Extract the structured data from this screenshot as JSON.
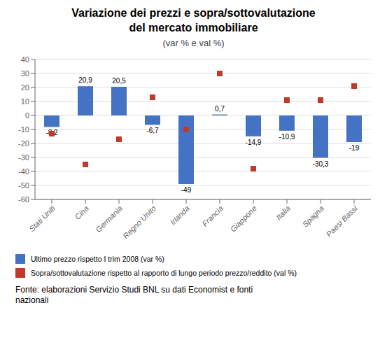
{
  "chart_data": {
    "type": "bar",
    "title": "Variazione dei prezzi e sopra/sottovalutazione\ndel mercato immobiliare",
    "subtitle": "(var % e val %)",
    "categories": [
      "Stati Uniti",
      "Cina",
      "Germania",
      "Regno Unito",
      "Irlanda",
      "Francia",
      "Giappone",
      "Italia",
      "Spagna",
      "Paesi Bassi"
    ],
    "series": [
      {
        "name": "Ultimo prezzo rispetto I trim 2008 (var %)",
        "type": "bar",
        "color": "#4472C4",
        "values": [
          -8.2,
          20.9,
          20.5,
          -6.7,
          -49,
          0.7,
          -14.9,
          -10.9,
          -30.3,
          -19
        ],
        "value_labels": [
          "-8,2",
          "20,9",
          "20,5",
          "-6,7",
          "-49",
          "0,7",
          "-14,9",
          "-10,9",
          "-30,3",
          "-19"
        ]
      },
      {
        "name": "Sopra/sottovalutazione rispetto al rapporto di lungo periodo prezzo/reddito (val %)",
        "type": "scatter",
        "marker": "square",
        "color": "#C0392B",
        "values": [
          -13,
          -35,
          -17,
          13,
          -10,
          30,
          -38,
          11,
          11,
          21
        ]
      }
    ],
    "ylim": [
      -60,
      40
    ],
    "yticks": [
      -60,
      -50,
      -40,
      -30,
      -20,
      -10,
      0,
      10,
      20,
      30,
      40
    ],
    "grid": true,
    "data_labels": true,
    "annotations": [
      "Fonte: elaborazioni Servizio Studi BNL su dati Economist e fonti\nnazionali"
    ]
  }
}
